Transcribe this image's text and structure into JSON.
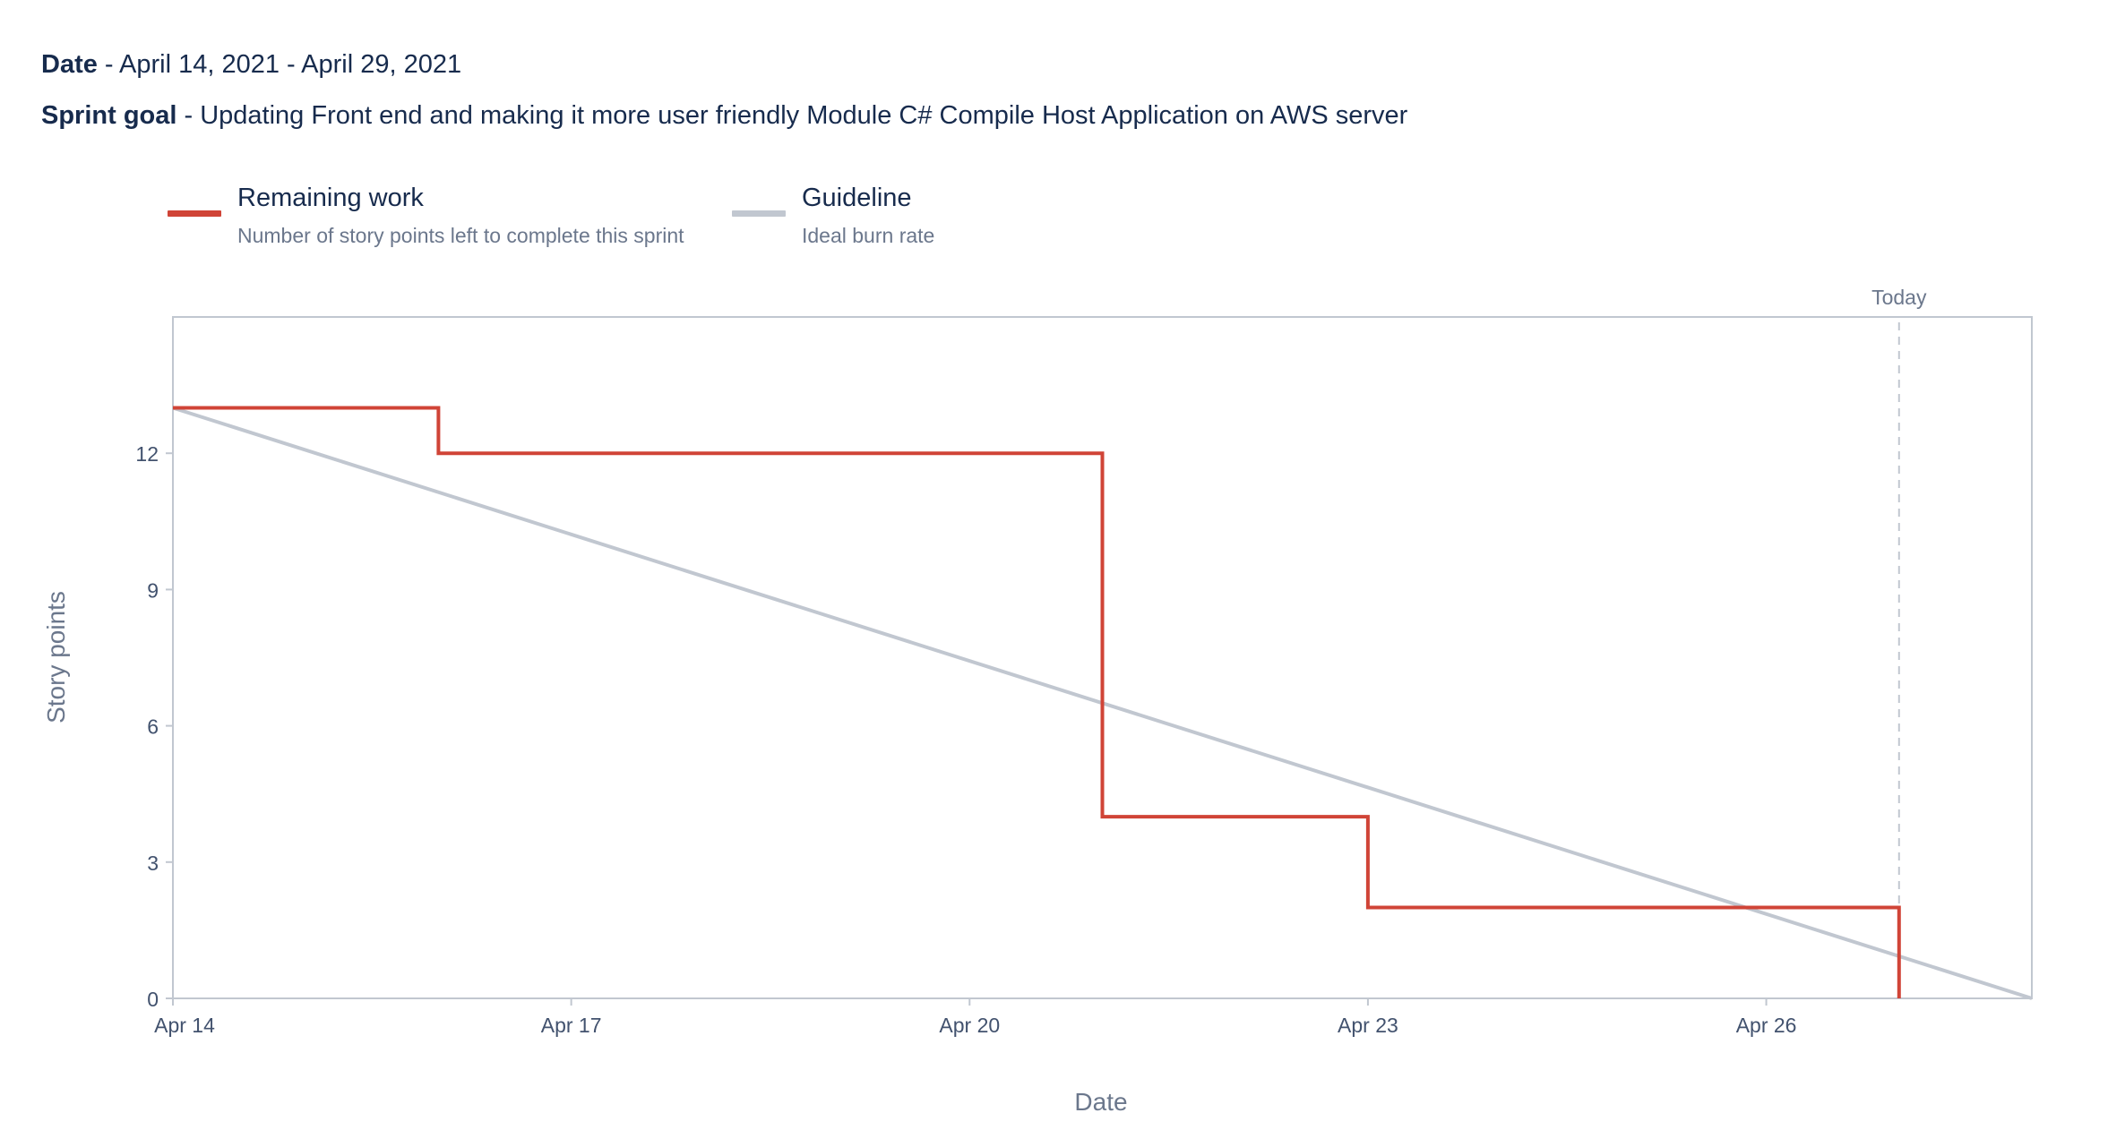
{
  "header": {
    "date_label": "Date",
    "date_value": " - April 14, 2021 - April 29, 2021",
    "goal_label": "Sprint goal",
    "goal_value": " - Updating Front end and making it more user friendly Module C# Compile Host Application on AWS server"
  },
  "legend": [
    {
      "title": "Remaining work",
      "description": "Number of story points left to complete this sprint",
      "color": "#d04437"
    },
    {
      "title": "Guideline",
      "description": "Ideal burn rate",
      "color": "#c1c7d0"
    }
  ],
  "chart_data": {
    "type": "line",
    "xlabel": "Date",
    "ylabel": "Story points",
    "x_ticks": [
      "Apr 14",
      "Apr 17",
      "Apr 20",
      "Apr 23",
      "Apr 26"
    ],
    "y_ticks": [
      0,
      3,
      6,
      9,
      12
    ],
    "xlim": [
      "2021-04-14",
      "2021-04-28"
    ],
    "ylim": [
      0,
      15
    ],
    "today_label": "Today",
    "today": "2021-04-27",
    "grid": false,
    "legend_position": "top-left",
    "series": [
      {
        "name": "Remaining work",
        "color": "#d04437",
        "step": true,
        "points": [
          {
            "x": "2021-04-14",
            "y": 13
          },
          {
            "x": "2021-04-16",
            "y": 13
          },
          {
            "x": "2021-04-16",
            "y": 12
          },
          {
            "x": "2021-04-21",
            "y": 12
          },
          {
            "x": "2021-04-21",
            "y": 4
          },
          {
            "x": "2021-04-23",
            "y": 4
          },
          {
            "x": "2021-04-23",
            "y": 2
          },
          {
            "x": "2021-04-27",
            "y": 2
          },
          {
            "x": "2021-04-27",
            "y": 0
          }
        ]
      },
      {
        "name": "Guideline",
        "color": "#c1c7d0",
        "points": [
          {
            "x": "2021-04-14",
            "y": 13
          },
          {
            "x": "2021-04-28",
            "y": 0
          }
        ]
      }
    ]
  }
}
